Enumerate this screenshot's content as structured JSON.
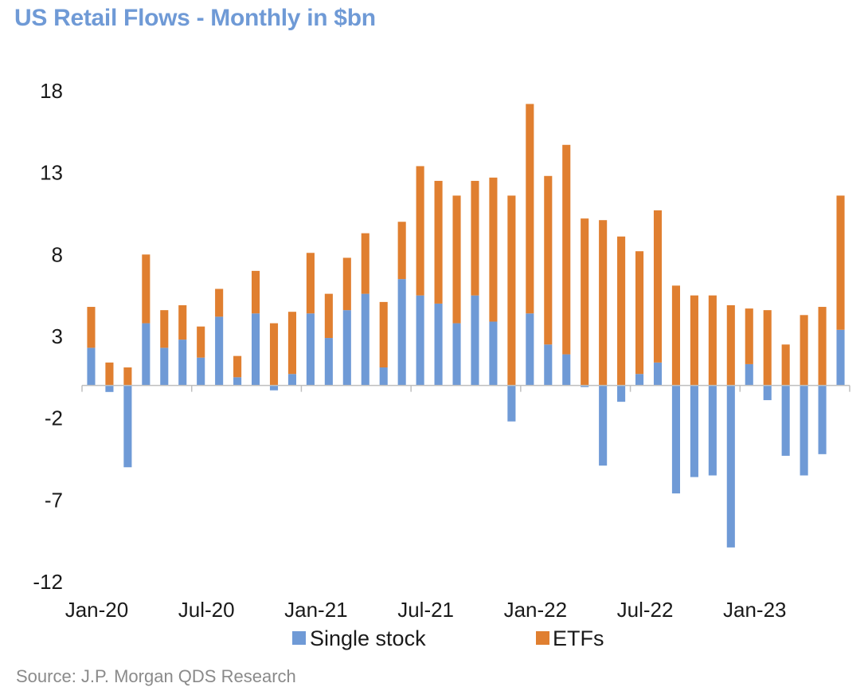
{
  "chart_data": {
    "type": "bar",
    "stacked": true,
    "title": "US Retail Flows - Monthly in $bn",
    "source": "Source: J.P. Morgan QDS Research",
    "xlabel": "",
    "ylabel": "",
    "ylim": [
      -12,
      18
    ],
    "y_ticks": [
      "18",
      "13",
      "8",
      "3",
      "-2",
      "-7",
      "-12"
    ],
    "y_tick_values": [
      18,
      13,
      8,
      3,
      -2,
      -7,
      -12
    ],
    "grid": false,
    "legend_position": "bottom",
    "categories": [
      "Jan-20",
      "Feb-20",
      "Mar-20",
      "Apr-20",
      "May-20",
      "Jun-20",
      "Jul-20",
      "Aug-20",
      "Sep-20",
      "Oct-20",
      "Nov-20",
      "Dec-20",
      "Jan-21",
      "Feb-21",
      "Mar-21",
      "Apr-21",
      "May-21",
      "Jun-21",
      "Jul-21",
      "Aug-21",
      "Sep-21",
      "Oct-21",
      "Nov-21",
      "Dec-21",
      "Jan-22",
      "Feb-22",
      "Mar-22",
      "Apr-22",
      "May-22",
      "Jun-22",
      "Jul-22",
      "Aug-22",
      "Sep-22",
      "Oct-22",
      "Nov-22",
      "Dec-22",
      "Jan-23",
      "Feb-23",
      "Mar-23",
      "Apr-23",
      "May-23",
      "Jun-23"
    ],
    "x_tick_labels": [
      {
        "label": "Jan-20",
        "index": 0
      },
      {
        "label": "Jul-20",
        "index": 6
      },
      {
        "label": "Jan-21",
        "index": 12
      },
      {
        "label": "Jul-21",
        "index": 18
      },
      {
        "label": "Jan-22",
        "index": 24
      },
      {
        "label": "Jul-22",
        "index": 30
      },
      {
        "label": "Jan-23",
        "index": 36
      }
    ],
    "series": [
      {
        "name": "Single stock",
        "color": "#6f9ad6",
        "values": [
          2.3,
          -0.4,
          -5.0,
          3.8,
          2.3,
          2.8,
          1.7,
          4.2,
          0.5,
          4.4,
          -0.3,
          0.7,
          4.4,
          2.9,
          4.6,
          5.6,
          1.1,
          6.5,
          5.5,
          5.0,
          3.8,
          5.5,
          3.9,
          -2.2,
          4.4,
          2.5,
          1.9,
          -0.1,
          -4.9,
          -1.0,
          0.7,
          1.4,
          -6.6,
          -5.6,
          -5.5,
          -9.9,
          1.3,
          -0.9,
          -4.3,
          -5.5,
          -4.2,
          3.4
        ]
      },
      {
        "name": "ETFs",
        "color": "#e07f30",
        "values": [
          2.5,
          1.4,
          1.1,
          4.2,
          2.3,
          2.1,
          1.9,
          1.7,
          1.3,
          2.6,
          3.8,
          3.8,
          3.7,
          2.7,
          3.2,
          3.7,
          4.0,
          3.5,
          7.9,
          7.5,
          7.8,
          7.0,
          8.8,
          11.6,
          12.8,
          10.3,
          12.8,
          10.2,
          10.1,
          9.1,
          7.5,
          9.3,
          6.1,
          5.5,
          5.5,
          4.9,
          3.4,
          4.6,
          2.5,
          4.3,
          4.8,
          8.2
        ]
      }
    ]
  }
}
